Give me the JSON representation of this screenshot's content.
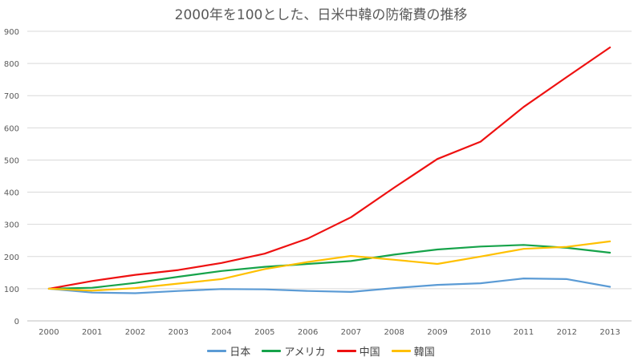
{
  "chart_data": {
    "type": "line",
    "title": "2000年を100とした、日米中韓の防衛費の推移",
    "xlabel": "",
    "ylabel": "",
    "ylim": [
      0,
      900
    ],
    "yticks": [
      0,
      100,
      200,
      300,
      400,
      500,
      600,
      700,
      800,
      900
    ],
    "categories": [
      "2000",
      "2001",
      "2002",
      "2003",
      "2004",
      "2005",
      "2006",
      "2007",
      "2008",
      "2009",
      "2010",
      "2011",
      "2012",
      "2013"
    ],
    "grid": true,
    "legend_position": "bottom",
    "series": [
      {
        "name": "日本",
        "color": "#5b9bd5",
        "values": [
          100,
          88,
          86,
          93,
          99,
          98,
          93,
          90,
          102,
          112,
          117,
          132,
          130,
          106
        ]
      },
      {
        "name": "アメリカ",
        "color": "#16a34a",
        "values": [
          100,
          103,
          118,
          137,
          155,
          168,
          177,
          186,
          206,
          222,
          231,
          236,
          227,
          212
        ]
      },
      {
        "name": "中国",
        "color": "#ee1111",
        "values": [
          100,
          124,
          143,
          158,
          180,
          209,
          256,
          322,
          414,
          503,
          557,
          665,
          758,
          850
        ]
      },
      {
        "name": "韓国",
        "color": "#ffc000",
        "values": [
          100,
          94,
          102,
          116,
          130,
          161,
          183,
          202,
          190,
          177,
          200,
          224,
          230,
          247
        ]
      }
    ]
  }
}
